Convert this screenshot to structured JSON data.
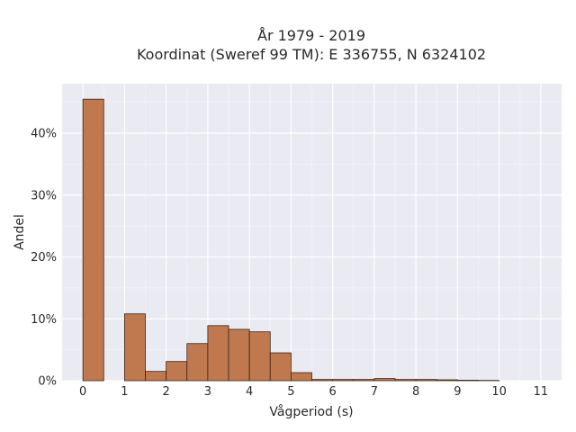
{
  "chart_data": {
    "type": "bar",
    "title": [
      "År 1979 - 2019",
      "Koordinat (Sweref 99 TM): E 336755, N 6324102"
    ],
    "xlabel": "Vågperiod (s)",
    "ylabel": "Andel",
    "xlim": [
      -0.5,
      11.5
    ],
    "ylim": [
      0,
      48
    ],
    "x_ticks": [
      0,
      1,
      2,
      3,
      4,
      5,
      6,
      7,
      8,
      9,
      10,
      11
    ],
    "y_ticks": [
      0,
      10,
      20,
      30,
      40
    ],
    "y_tick_format": "percent",
    "grid": true,
    "bin_width": 0.5,
    "bar_color": "#c0794f",
    "edge_color": "#3b2417",
    "background_color": "#eaeaf2",
    "bins": [
      {
        "start": 0.0,
        "value": 45.5
      },
      {
        "start": 0.5,
        "value": 0.0
      },
      {
        "start": 1.0,
        "value": 10.8
      },
      {
        "start": 1.5,
        "value": 1.5
      },
      {
        "start": 2.0,
        "value": 3.1
      },
      {
        "start": 2.5,
        "value": 6.0
      },
      {
        "start": 3.0,
        "value": 8.9
      },
      {
        "start": 3.5,
        "value": 8.3
      },
      {
        "start": 4.0,
        "value": 7.9
      },
      {
        "start": 4.5,
        "value": 4.5
      },
      {
        "start": 5.0,
        "value": 1.3
      },
      {
        "start": 5.5,
        "value": 0.2
      },
      {
        "start": 6.0,
        "value": 0.2
      },
      {
        "start": 6.5,
        "value": 0.2
      },
      {
        "start": 7.0,
        "value": 0.35
      },
      {
        "start": 7.5,
        "value": 0.2
      },
      {
        "start": 8.0,
        "value": 0.2
      },
      {
        "start": 8.5,
        "value": 0.15
      },
      {
        "start": 9.0,
        "value": 0.08
      },
      {
        "start": 9.5,
        "value": 0.05
      }
    ]
  }
}
